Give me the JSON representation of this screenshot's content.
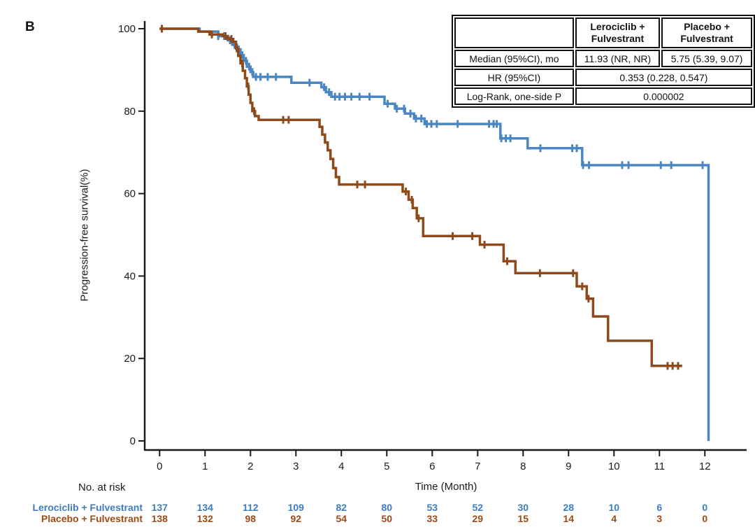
{
  "panel_label": "B",
  "colors": {
    "lerociclib_curve": "#4a86c2",
    "placebo_curve": "#8e4a1a",
    "lerociclib_text": "#3d7cc0",
    "placebo_text": "#9c4a16",
    "axis": "#1a1a1a"
  },
  "stats_table": {
    "header": [
      "",
      "Lerociclib + Fulvestrant",
      "Placebo + Fulvestrant"
    ],
    "rows": [
      {
        "label": "Median (95%CI), mo",
        "lerociclib": "11.93 (NR, NR)",
        "placebo": "5.75 (5.39, 9.07)"
      },
      {
        "label": "HR (95%CI)",
        "value": "0.353 (0.228, 0.547)"
      },
      {
        "label": "Log-Rank, one-side P",
        "value": "0.000002"
      }
    ]
  },
  "chart_data": {
    "type": "line",
    "subtype": "kaplan-meier-step",
    "title": "",
    "xlabel": "Time (Month)",
    "ylabel": "Progression-free survival(%)",
    "xlim": [
      0,
      12
    ],
    "ylim": [
      0,
      100
    ],
    "xticks": [
      0,
      1,
      2,
      3,
      4,
      5,
      6,
      7,
      8,
      9,
      10,
      11,
      12
    ],
    "yticks": [
      0,
      20,
      40,
      60,
      80,
      100
    ],
    "grid": false,
    "legend_position": "none",
    "series": [
      {
        "name": "Lerociclib + Fulvestrant",
        "color": "#4a86c2",
        "steps": [
          [
            0,
            100
          ],
          [
            0.88,
            99.3
          ],
          [
            1.29,
            98.2
          ],
          [
            1.5,
            97.2
          ],
          [
            1.6,
            96.1
          ],
          [
            1.7,
            95
          ],
          [
            1.78,
            93.6
          ],
          [
            1.85,
            92.2
          ],
          [
            1.92,
            90.8
          ],
          [
            2.0,
            89.5
          ],
          [
            2.06,
            88.3
          ],
          [
            2.9,
            86.9
          ],
          [
            3.56,
            85.8
          ],
          [
            3.66,
            84.6
          ],
          [
            3.78,
            83.5
          ],
          [
            4.95,
            81.8
          ],
          [
            5.18,
            80.6
          ],
          [
            5.4,
            79.4
          ],
          [
            5.6,
            78.2
          ],
          [
            5.83,
            76.9
          ],
          [
            7.5,
            73.4
          ],
          [
            8.1,
            71.0
          ],
          [
            9.3,
            66.9
          ],
          [
            12.08,
            0
          ]
        ],
        "censors": [
          1.29,
          1.42,
          1.55,
          1.65,
          1.74,
          1.82,
          1.9,
          1.97,
          2.04,
          2.12,
          2.22,
          2.38,
          2.56,
          3.3,
          3.62,
          3.73,
          3.86,
          3.96,
          4.08,
          4.22,
          4.4,
          4.62,
          5.02,
          5.22,
          5.38,
          5.52,
          5.64,
          5.76,
          5.88,
          5.98,
          6.1,
          6.56,
          7.25,
          7.35,
          7.42,
          7.52,
          7.62,
          7.72,
          8.38,
          9.08,
          9.18,
          9.32,
          9.45,
          10.18,
          10.32,
          11.03,
          11.26,
          11.95
        ]
      },
      {
        "name": "Placebo + Fulvestrant",
        "color": "#8e4a1a",
        "steps": [
          [
            0,
            100
          ],
          [
            0.85,
            99.3
          ],
          [
            1.1,
            98.6
          ],
          [
            1.39,
            98.2
          ],
          [
            1.5,
            97.5
          ],
          [
            1.62,
            96.8
          ],
          [
            1.68,
            95.2
          ],
          [
            1.73,
            93.4
          ],
          [
            1.78,
            91.6
          ],
          [
            1.83,
            89.8
          ],
          [
            1.88,
            88.0
          ],
          [
            1.92,
            86.0
          ],
          [
            1.96,
            84.0
          ],
          [
            2.0,
            82.0
          ],
          [
            2.04,
            80.0
          ],
          [
            2.1,
            78.8
          ],
          [
            2.18,
            77.9
          ],
          [
            3.52,
            76.2
          ],
          [
            3.58,
            74.3
          ],
          [
            3.64,
            72.4
          ],
          [
            3.7,
            70.5
          ],
          [
            3.76,
            68.4
          ],
          [
            3.82,
            66.2
          ],
          [
            3.88,
            64.0
          ],
          [
            3.95,
            62.2
          ],
          [
            5.35,
            60.5
          ],
          [
            5.48,
            58.5
          ],
          [
            5.57,
            56.5
          ],
          [
            5.66,
            54.0
          ],
          [
            5.8,
            49.7
          ],
          [
            7.05,
            47.6
          ],
          [
            7.57,
            43.6
          ],
          [
            7.83,
            40.7
          ],
          [
            9.18,
            37.5
          ],
          [
            9.4,
            34.5
          ],
          [
            9.54,
            30.2
          ],
          [
            9.87,
            24.3
          ],
          [
            10.83,
            18.2
          ],
          [
            11.5,
            18.2
          ]
        ],
        "censors": [
          0.05,
          1.15,
          1.45,
          1.58,
          1.7,
          1.82,
          1.95,
          2.08,
          2.72,
          2.84,
          4.35,
          4.52,
          5.42,
          5.55,
          5.7,
          6.45,
          6.88,
          7.15,
          7.65,
          8.37,
          9.1,
          9.3,
          9.44,
          11.18,
          11.29,
          11.41
        ]
      }
    ]
  },
  "risk_table": {
    "title": "No. at risk",
    "time_points": [
      0,
      1,
      2,
      3,
      4,
      5,
      6,
      7,
      8,
      9,
      10,
      11,
      12
    ],
    "rows": [
      {
        "label": "Lerociclib + Fulvestrant",
        "color": "#3d7cc0",
        "values": [
          137,
          134,
          112,
          109,
          82,
          80,
          53,
          52,
          30,
          28,
          10,
          6,
          0
        ]
      },
      {
        "label": "Placebo + Fulvestrant",
        "color": "#9c4a16",
        "values": [
          138,
          132,
          98,
          92,
          54,
          50,
          33,
          29,
          15,
          14,
          4,
          3,
          0
        ]
      }
    ]
  }
}
